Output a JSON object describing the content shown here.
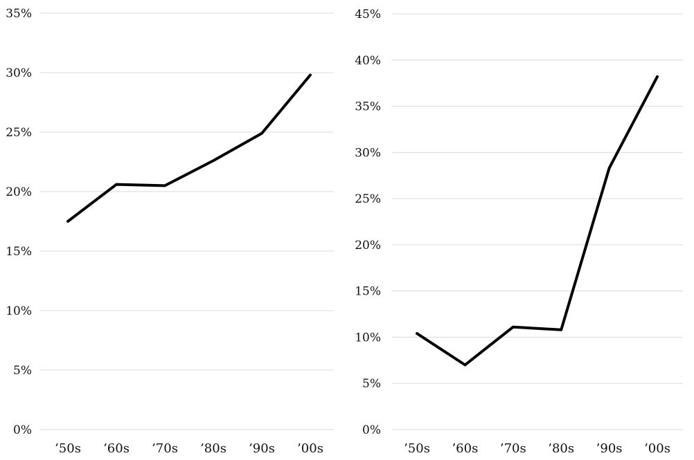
{
  "chart_data": [
    {
      "type": "line",
      "title": "",
      "xlabel": "",
      "ylabel": "",
      "categories": [
        "’50s",
        "’60s",
        "’70s",
        "’80s",
        "’90s",
        "’00s"
      ],
      "series": [
        {
          "values": [
            17.5,
            20.6,
            20.5,
            22.6,
            24.9,
            29.8
          ]
        }
      ],
      "ylim": [
        0,
        35
      ],
      "yticks": [
        0,
        5,
        10,
        15,
        20,
        25,
        30,
        35
      ],
      "ytick_labels": [
        "0%",
        "5%",
        "10%",
        "15%",
        "20%",
        "25%",
        "30%",
        "35%"
      ],
      "grid": true,
      "legend": "none",
      "line_color": "#000000",
      "grid_color": "#d9d9d9"
    },
    {
      "type": "line",
      "title": "",
      "xlabel": "",
      "ylabel": "",
      "categories": [
        "’50s",
        "’60s",
        "’70s",
        "’80s",
        "’90s",
        "’00s"
      ],
      "series": [
        {
          "values": [
            10.4,
            7.0,
            11.1,
            10.8,
            28.3,
            38.2
          ]
        }
      ],
      "ylim": [
        0,
        45
      ],
      "yticks": [
        0,
        5,
        10,
        15,
        20,
        25,
        30,
        35,
        40,
        45
      ],
      "ytick_labels": [
        "0%",
        "5%",
        "10%",
        "15%",
        "20%",
        "25%",
        "30%",
        "35%",
        "40%",
        "45%"
      ],
      "grid": true,
      "legend": "none",
      "line_color": "#000000",
      "grid_color": "#d9d9d9"
    }
  ]
}
